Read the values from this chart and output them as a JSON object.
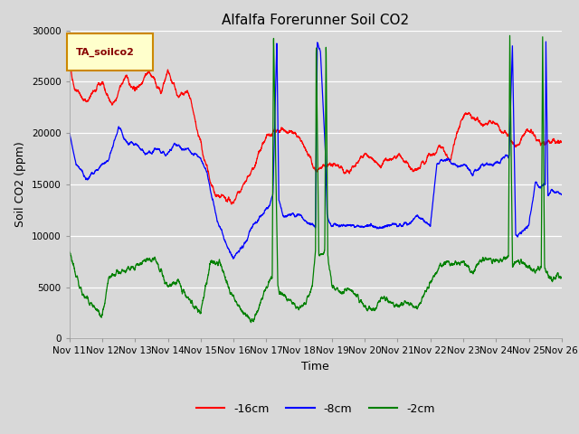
{
  "title": "Alfalfa Forerunner Soil CO2",
  "ylabel": "Soil CO2 (ppm)",
  "xlabel": "Time",
  "legend_label": "TA_soilco2",
  "series_labels": [
    "-16cm",
    "-8cm",
    "-2cm"
  ],
  "series_colors": [
    "red",
    "blue",
    "green"
  ],
  "ylim": [
    0,
    30000
  ],
  "yticks": [
    0,
    5000,
    10000,
    15000,
    20000,
    25000,
    30000
  ],
  "xtick_labels": [
    "Nov 11",
    "Nov 12",
    "Nov 13",
    "Nov 14",
    "Nov 15",
    "Nov 16",
    "Nov 17",
    "Nov 18",
    "Nov 19",
    "Nov 20",
    "Nov 21",
    "Nov 22",
    "Nov 23",
    "Nov 24",
    "Nov 25",
    "Nov 26"
  ],
  "background_color": "#d8d8d8",
  "plot_bg_color": "#d8d8d8",
  "legend_box_color": "#ffffcc",
  "legend_box_edgecolor": "#cc8800",
  "legend_text_color": "#880000",
  "title_fontsize": 11,
  "axis_label_fontsize": 9,
  "tick_fontsize": 7.5,
  "n_points": 3600,
  "n_days": 15
}
